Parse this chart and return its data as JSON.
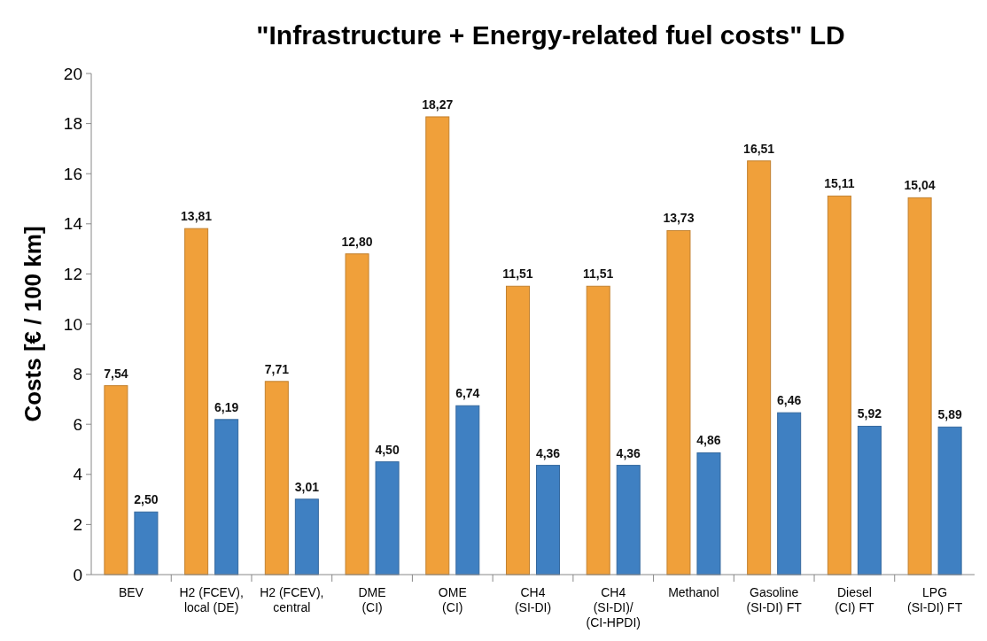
{
  "chart_data": {
    "type": "bar",
    "title": "\"Infrastructure + Energy-related fuel costs\" LD",
    "ylabel": "Costs [€ / 100 km]",
    "categories": [
      "BEV",
      "H2 (FCEV),\nlocal (DE)",
      "H2 (FCEV),\ncentral",
      "DME\n(CI)",
      "OME\n(CI)",
      "CH4\n(SI-DI)",
      "CH4\n(SI-DI)/\n(CI-HPDI)",
      "Methanol",
      "Gasoline\n(SI-DI) FT",
      "Diesel\n(CI) FT",
      "LPG\n(SI-DI) FT"
    ],
    "series": [
      {
        "color": "#f0a03a",
        "values": [
          7.54,
          13.81,
          7.71,
          12.8,
          18.27,
          11.51,
          11.51,
          13.73,
          16.51,
          15.11,
          15.04
        ],
        "value_labels": [
          "7,54",
          "13,81",
          "7,71",
          "12,80",
          "18,27",
          "11,51",
          "11,51",
          "13,73",
          "16,51",
          "15,11",
          "15,04"
        ]
      },
      {
        "color": "#3f80c2",
        "values": [
          2.5,
          6.19,
          3.01,
          4.5,
          6.74,
          4.36,
          4.36,
          4.86,
          6.46,
          5.92,
          5.89
        ],
        "value_labels": [
          "2,50",
          "6,19",
          "3,01",
          "4,50",
          "6,74",
          "4,36",
          "4,36",
          "4,86",
          "6,46",
          "5,92",
          "5,89"
        ]
      }
    ],
    "ylim": [
      0,
      20
    ],
    "yticks": [
      0,
      2,
      4,
      6,
      8,
      10,
      12,
      14,
      16,
      18,
      20
    ]
  }
}
